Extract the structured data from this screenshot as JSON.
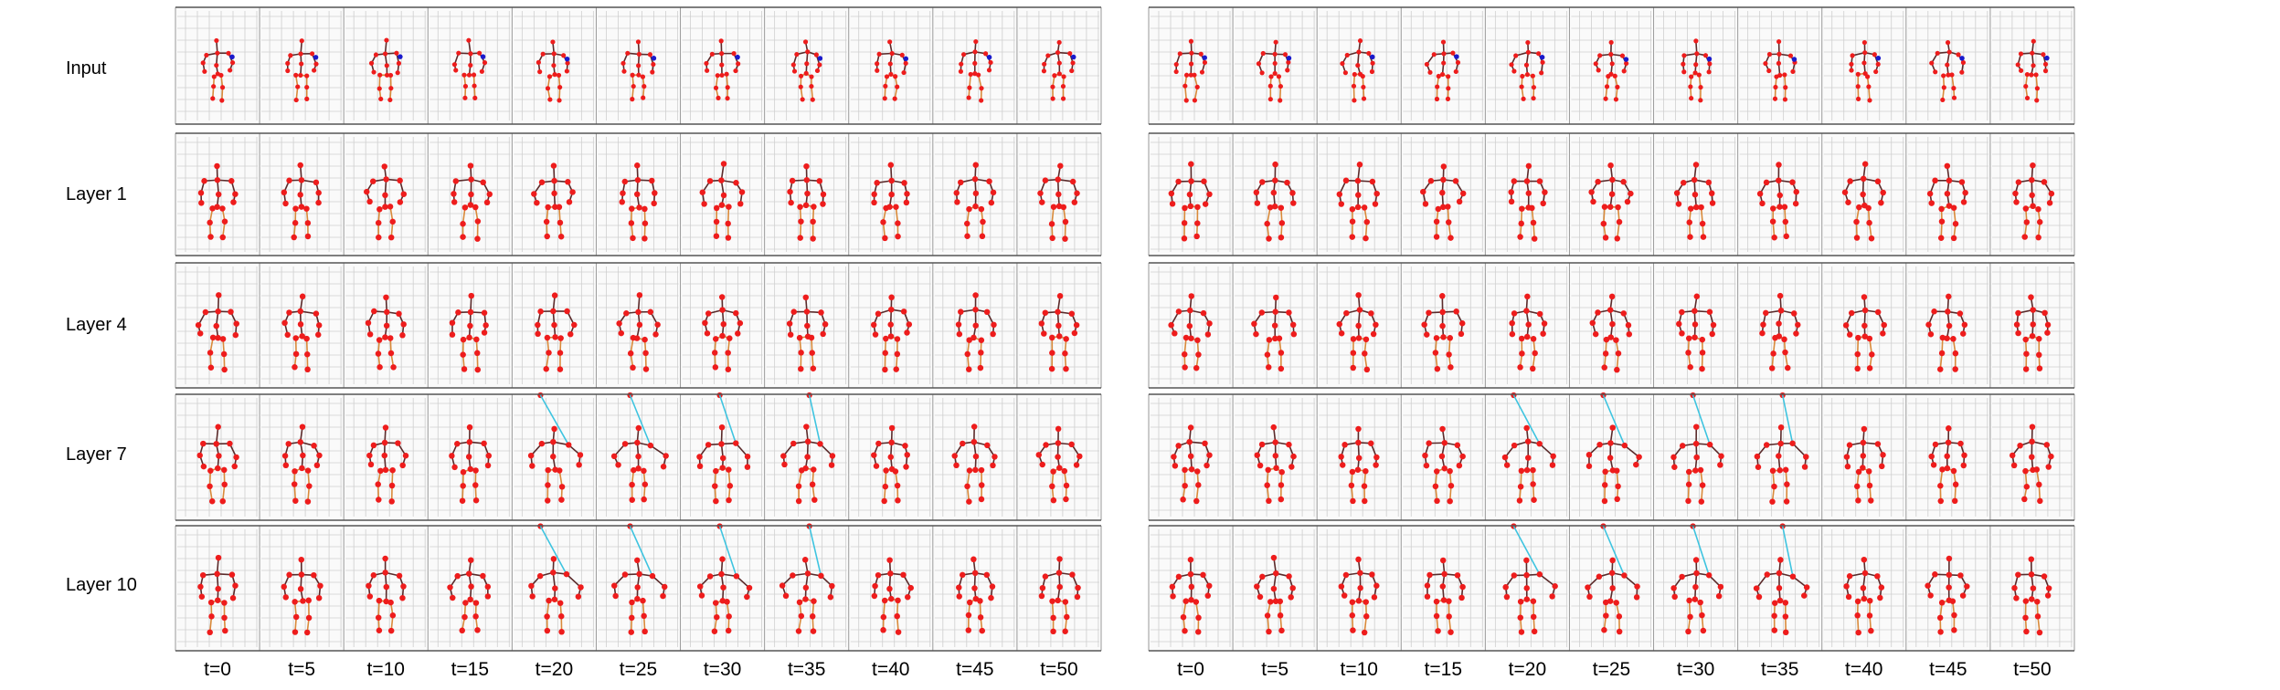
{
  "row_labels": [
    "Input",
    "Layer 1",
    "Layer 4",
    "Layer 7",
    "Layer 10"
  ],
  "time_labels": [
    "t=0",
    "t=5",
    "t=10",
    "t=15",
    "t=20",
    "t=25",
    "t=30",
    "t=35",
    "t=40",
    "t=45",
    "t=50"
  ],
  "panels": [
    "left",
    "right"
  ],
  "colors": {
    "joint": "#ee1c1c",
    "highlight_joint": "#1a1acc",
    "bone": "#5a2a2a",
    "leg_bone": "#d98a3a",
    "cyan_bone": "#3ec4e0",
    "grid": "#cfcfcf",
    "frame_border": "#555555"
  }
}
